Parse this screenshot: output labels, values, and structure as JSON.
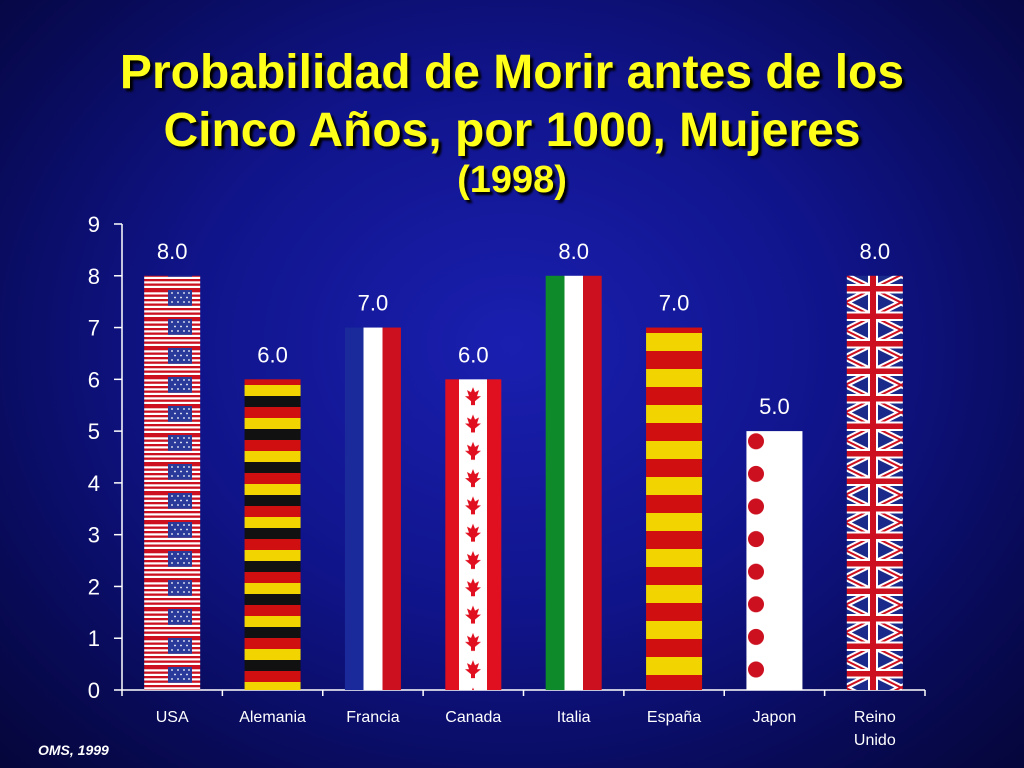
{
  "title": {
    "line1": "Probabilidad de Morir antes de los",
    "line2": "Cinco Años, por 1000, Mujeres",
    "line3": "(1998)"
  },
  "source": "OMS, 1999",
  "colors": {
    "text": "#ffffff",
    "title": "#ffff1a",
    "axis": "#ffffff"
  },
  "chart_data": {
    "type": "bar",
    "title": "Probabilidad de Morir antes de los Cinco Años, por 1000, Mujeres (1998)",
    "categories": [
      "USA",
      "Alemania",
      "Francia",
      "Canada",
      "Italia",
      "España",
      "Japon",
      "Reino Unido"
    ],
    "category_lines": [
      [
        "USA"
      ],
      [
        "Alemania"
      ],
      [
        "Francia"
      ],
      [
        "Canada"
      ],
      [
        "Italia"
      ],
      [
        "España"
      ],
      [
        "Japon"
      ],
      [
        "Reino",
        "Unido"
      ]
    ],
    "values": [
      8.0,
      6.0,
      7.0,
      6.0,
      8.0,
      7.0,
      5.0,
      8.0
    ],
    "value_labels": [
      "8.0",
      "6.0",
      "7.0",
      "6.0",
      "8.0",
      "7.0",
      "5.0",
      "8.0"
    ],
    "bar_patterns": [
      "usa-flag",
      "germany-flag",
      "france-flag",
      "canada-flag",
      "italy-flag",
      "spain-flag",
      "japan-flag",
      "uk-flag"
    ],
    "ylim": [
      0,
      9
    ],
    "yticks": [
      "0",
      "1",
      "2",
      "3",
      "4",
      "5",
      "6",
      "7",
      "8",
      "9"
    ],
    "xlabel": "",
    "ylabel": "",
    "grid": false,
    "legend": "none"
  }
}
